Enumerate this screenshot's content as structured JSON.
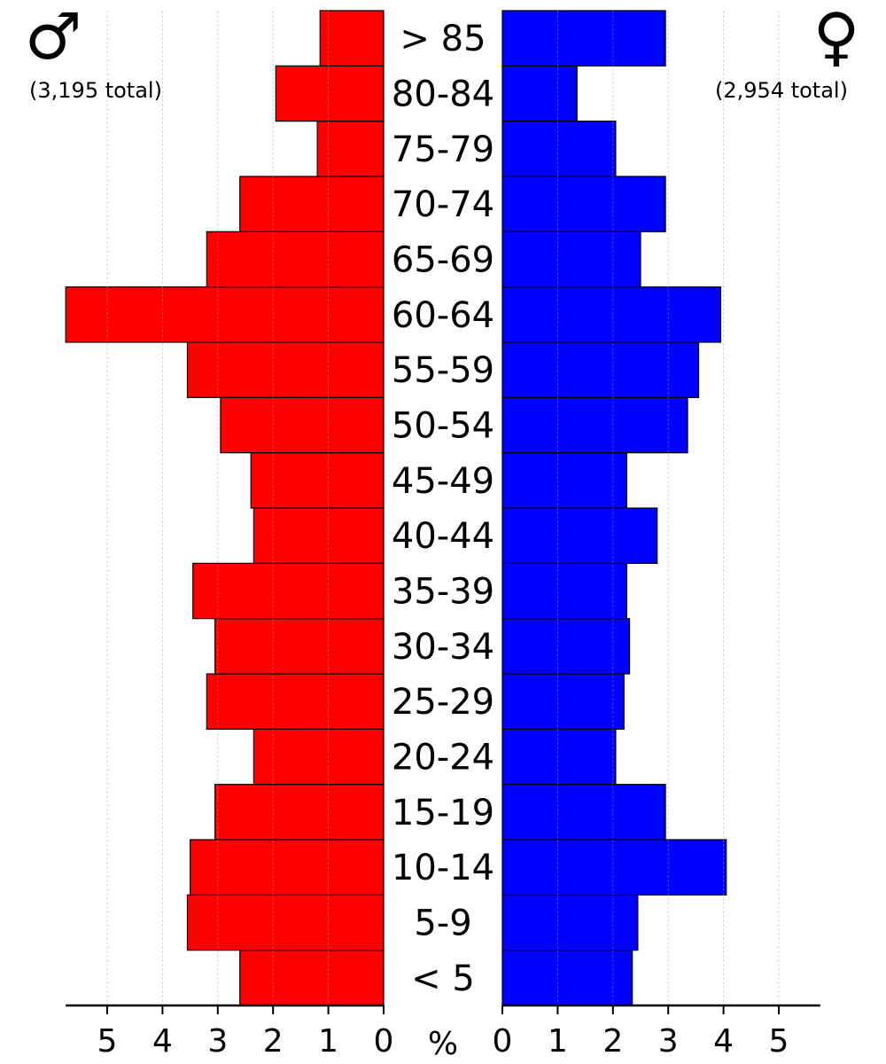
{
  "chart_data": {
    "type": "bar",
    "orientation": "horizontal-population-pyramid",
    "unit_label": "%",
    "male": {
      "symbol": "♂",
      "total_label": "(3,195 total)",
      "color": "#ff0000"
    },
    "female": {
      "symbol": "♀",
      "total_label": "(2,954 total)",
      "color": "#0000ff"
    },
    "age_groups": [
      "< 5",
      "5-9",
      "10-14",
      "15-19",
      "20-24",
      "25-29",
      "30-34",
      "35-39",
      "40-44",
      "45-49",
      "50-54",
      "55-59",
      "60-64",
      "65-69",
      "70-74",
      "75-79",
      "80-84",
      "> 85"
    ],
    "series": [
      {
        "name": "male",
        "values": [
          2.6,
          3.55,
          3.5,
          3.05,
          2.35,
          3.2,
          3.05,
          3.45,
          2.35,
          2.4,
          2.95,
          3.55,
          5.75,
          3.2,
          2.6,
          1.2,
          1.95,
          1.15
        ]
      },
      {
        "name": "female",
        "values": [
          2.35,
          2.45,
          4.05,
          2.95,
          2.05,
          2.2,
          2.3,
          2.25,
          2.8,
          2.25,
          3.35,
          3.55,
          3.95,
          2.5,
          2.95,
          2.05,
          1.35,
          2.95
        ]
      }
    ],
    "x_ticks": [
      "0",
      "1",
      "2",
      "3",
      "4",
      "5"
    ],
    "xlim": [
      0,
      5.75
    ],
    "grid": true
  }
}
